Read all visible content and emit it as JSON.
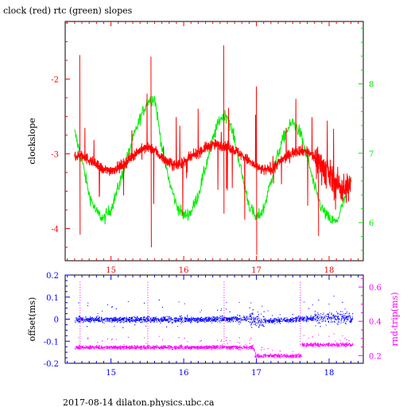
{
  "title": "clock (red) rtc (green) slopes",
  "footer": "2017-08-14 dilaton.physics.ubc.ca",
  "colors": {
    "red": "#ff0000",
    "green": "#00ee00",
    "blue": "#0000ff",
    "magenta": "#ff00ff",
    "axis": "#000000"
  },
  "chart_data": [
    {
      "type": "line",
      "title": "clock (red) rtc (green) slopes",
      "xlabel": "",
      "ylabel": "clockslope",
      "y2label": "",
      "xlim": [
        14.37,
        18.47
      ],
      "ylim": [
        -4.43,
        -1.23
      ],
      "y2lim": [
        5.45,
        8.9
      ],
      "xticks": [
        15,
        16,
        17,
        18
      ],
      "xtick_labels": [
        "15",
        "16",
        "17",
        "18"
      ],
      "yticks": [
        -4,
        -3,
        -2
      ],
      "ytick_labels": [
        "-4",
        "-3",
        "-2"
      ],
      "y2ticks": [
        6,
        7,
        8
      ],
      "y2tick_labels": [
        "6",
        "7",
        "8"
      ],
      "grid": false,
      "series": [
        {
          "axis": "left",
          "color": "#ff0000",
          "x": [
            14.5,
            14.6,
            14.7,
            14.8,
            14.9,
            15.0,
            15.1,
            15.2,
            15.3,
            15.4,
            15.5,
            15.6,
            15.7,
            15.8,
            15.9,
            16.0,
            16.1,
            16.2,
            16.3,
            16.4,
            16.5,
            16.6,
            16.7,
            16.8,
            16.9,
            17.0,
            17.1,
            17.2,
            17.3,
            17.4,
            17.5,
            17.6,
            17.7,
            17.8,
            17.9,
            18.0,
            18.1,
            18.2,
            18.3
          ],
          "y": [
            -3.02,
            -3.03,
            -3.08,
            -3.15,
            -3.22,
            -3.22,
            -3.18,
            -3.12,
            -3.02,
            -2.95,
            -2.92,
            -2.95,
            -3.05,
            -3.13,
            -3.15,
            -3.12,
            -3.05,
            -2.98,
            -2.92,
            -2.88,
            -2.88,
            -2.9,
            -2.95,
            -3.02,
            -3.1,
            -3.18,
            -3.22,
            -3.2,
            -3.12,
            -3.05,
            -2.98,
            -2.95,
            -2.97,
            -3.05,
            -3.15,
            -3.28,
            -3.4,
            -3.48,
            -3.42
          ]
        },
        {
          "axis": "right",
          "color": "#00ee00",
          "x": [
            14.5,
            14.6,
            14.7,
            14.8,
            14.9,
            15.0,
            15.1,
            15.2,
            15.3,
            15.4,
            15.5,
            15.6,
            15.7,
            15.8,
            15.9,
            16.0,
            16.1,
            16.2,
            16.3,
            16.4,
            16.5,
            16.6,
            16.7,
            16.8,
            16.9,
            17.0,
            17.1,
            17.2,
            17.3,
            17.4,
            17.5,
            17.6,
            17.7,
            17.8,
            17.9,
            18.0,
            18.1,
            18.2,
            18.3
          ],
          "y": [
            7.3,
            6.9,
            6.4,
            6.15,
            6.05,
            6.2,
            6.5,
            6.85,
            7.2,
            7.5,
            7.75,
            7.8,
            7.1,
            6.6,
            6.25,
            6.1,
            6.15,
            6.4,
            6.8,
            7.2,
            7.5,
            7.55,
            7.2,
            6.7,
            6.25,
            6.05,
            6.2,
            6.6,
            7.0,
            7.3,
            7.45,
            7.3,
            6.95,
            6.5,
            6.2,
            6.05,
            6.0,
            6.3,
            6.6
          ]
        }
      ]
    },
    {
      "type": "scatter",
      "title": "",
      "xlabel": "",
      "ylabel": "offset(ms)",
      "y2label": "rnd-trip(ms)",
      "xlim": [
        14.37,
        18.47
      ],
      "ylim": [
        -0.2,
        0.2
      ],
      "y2lim": [
        0.155,
        0.67
      ],
      "xticks": [
        15,
        16,
        17,
        18
      ],
      "xtick_labels": [
        "15",
        "16",
        "17",
        "18"
      ],
      "yticks": [
        -0.2,
        -0.1,
        0,
        0.1,
        0.2
      ],
      "ytick_labels": [
        "-0.2",
        "-0.1",
        "0",
        "0.1",
        "0.2"
      ],
      "y2ticks": [
        0.2,
        0.4,
        0.6
      ],
      "y2tick_labels": [
        "0.2",
        "0.4",
        "0.6"
      ],
      "grid": false,
      "series": [
        {
          "axis": "left",
          "color": "#0000ff",
          "x": [
            14.5,
            15.0,
            15.5,
            16.0,
            16.5,
            16.9,
            17.1,
            17.5,
            18.0,
            18.3
          ],
          "y": [
            0.0,
            0.0,
            0.0,
            0.0,
            0.0,
            0.005,
            -0.01,
            0.0,
            0.01,
            0.005
          ]
        },
        {
          "axis": "right",
          "color": "#ff00ff",
          "x": [
            14.5,
            15.0,
            15.5,
            16.0,
            16.5,
            16.95,
            17.0,
            17.3,
            17.6,
            17.65,
            18.0,
            18.3
          ],
          "y": [
            0.25,
            0.25,
            0.25,
            0.25,
            0.25,
            0.25,
            0.2,
            0.2,
            0.2,
            0.26,
            0.27,
            0.27
          ]
        }
      ]
    }
  ]
}
